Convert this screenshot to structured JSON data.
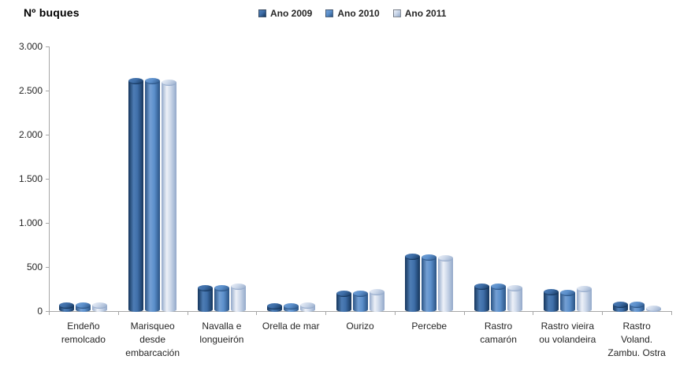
{
  "chart_data": {
    "type": "bar",
    "subtype": "3d-cylinder",
    "title": "Nº buques",
    "legend_position": "top-center",
    "grid": false,
    "background": "#FFFFFF",
    "axis_color": "#A6A6A6",
    "text_color": "#262626",
    "ylim": [
      0,
      3000
    ],
    "ytick_step": 500,
    "ytick_labels": [
      "0",
      "500",
      "1.000",
      "1.500",
      "2.000",
      "2.500",
      "3.000"
    ],
    "categories": [
      "Endeño remolcado",
      "Marisqueo desde embarcación",
      "Navalla e longueirón",
      "Orella de mar",
      "Ourizo",
      "Percebe",
      "Rastro camarón",
      "Rastro vieira ou volandeira",
      "Rastro Voland. Zambu. Ostra"
    ],
    "category_label_lines": [
      [
        "Endeño",
        "remolcado"
      ],
      [
        "Marisqueo",
        "desde",
        "embarcación"
      ],
      [
        "Navalla e",
        "longueirón"
      ],
      [
        "Orella de mar"
      ],
      [
        "Ourizo"
      ],
      [
        "Percebe"
      ],
      [
        "Rastro",
        "camarón"
      ],
      [
        "Rastro vieira",
        "ou volandeira"
      ],
      [
        "Rastro",
        "Voland.",
        "Zambu. Ostra"
      ]
    ],
    "series": [
      {
        "name": "Ano 2009",
        "color": "#31588D",
        "gradient": {
          "edge": "#15355B",
          "light": "#4E7DB5",
          "mid": "#3E6EA8"
        },
        "values": [
          60,
          2610,
          255,
          55,
          200,
          620,
          275,
          210,
          70
        ]
      },
      {
        "name": "Ano 2010",
        "color": "#4F81BD",
        "gradient": {
          "edge": "#2A5384",
          "light": "#74A0D4",
          "mid": "#5C90CC"
        },
        "values": [
          60,
          2610,
          260,
          55,
          195,
          605,
          280,
          205,
          70
        ]
      },
      {
        "name": "Ano 2011",
        "color": "#B8CCE4",
        "gradient": {
          "edge": "#93A9CA",
          "light": "#EDF1F8",
          "mid": "#CBD7E9"
        },
        "values": [
          65,
          2590,
          280,
          60,
          210,
          600,
          255,
          250,
          30
        ]
      }
    ]
  }
}
